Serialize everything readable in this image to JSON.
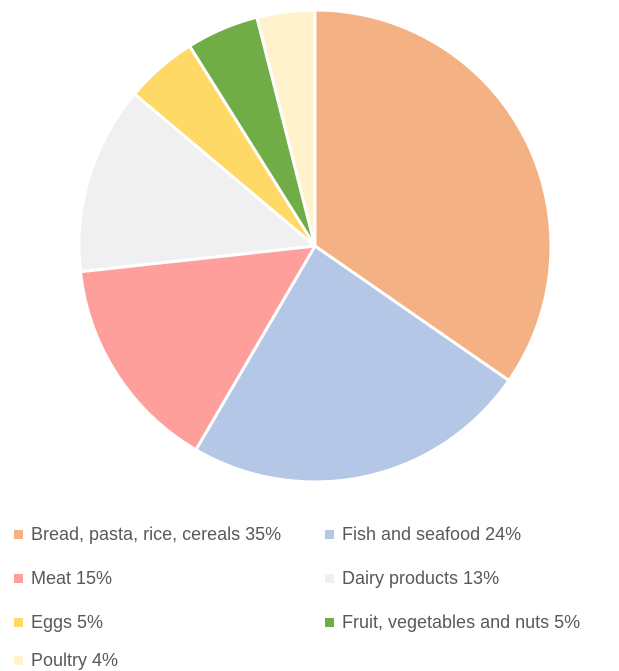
{
  "chart_data": {
    "type": "pie",
    "title": "",
    "slices": [
      {
        "label": "Bread, pasta, rice, cereals",
        "value": 35,
        "legend_text": "Bread, pasta, rice, cereals 35%",
        "color": "#F4B183"
      },
      {
        "label": "Fish and seafood",
        "value": 24,
        "legend_text": "Fish and seafood 24%",
        "color": "#B4C7E7"
      },
      {
        "label": "Meat",
        "value": 15,
        "legend_text": "Meat 15%",
        "color": "#FF9F9B"
      },
      {
        "label": "Dairy products",
        "value": 13,
        "legend_text": "Dairy products 13%",
        "color": "#F0F0F0"
      },
      {
        "label": "Eggs",
        "value": 5,
        "legend_text": "Eggs 5%",
        "color": "#FFD966"
      },
      {
        "label": "Fruit, vegetables and nuts",
        "value": 5,
        "legend_text": "Fruit, vegetables and nuts 5%",
        "color": "#70AD47"
      },
      {
        "label": "Poultry",
        "value": 4,
        "legend_text": "Poultry 4%",
        "color": "#FFF2CC"
      }
    ],
    "legend_position": "bottom"
  }
}
